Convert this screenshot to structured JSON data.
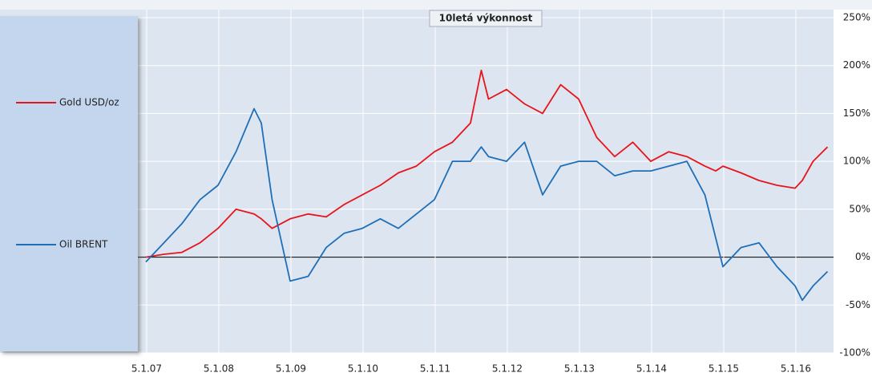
{
  "chart_data": {
    "type": "line",
    "title": "10letá výkonnost",
    "x": [
      2007,
      2007.25,
      2007.5,
      2007.75,
      2008,
      2008.25,
      2008.5,
      2008.6,
      2008.75,
      2009,
      2009.25,
      2009.5,
      2009.75,
      2010,
      2010.25,
      2010.5,
      2010.75,
      2011,
      2011.25,
      2011.5,
      2011.65,
      2011.75,
      2012,
      2012.25,
      2012.5,
      2012.75,
      2013,
      2013.25,
      2013.5,
      2013.75,
      2014,
      2014.25,
      2014.5,
      2014.75,
      2014.9,
      2015,
      2015.25,
      2015.5,
      2015.75,
      2016,
      2016.1,
      2016.25,
      2016.45
    ],
    "series": [
      {
        "name": "Gold USD/oz",
        "color": "#e8141c",
        "values": [
          0,
          3,
          5,
          15,
          30,
          50,
          45,
          40,
          30,
          40,
          45,
          42,
          55,
          65,
          75,
          88,
          95,
          110,
          120,
          140,
          195,
          165,
          175,
          160,
          150,
          180,
          165,
          125,
          105,
          120,
          100,
          110,
          105,
          95,
          90,
          95,
          88,
          80,
          75,
          72,
          80,
          100,
          115
        ]
      },
      {
        "name": "Oil BRENT",
        "color": "#1f6fb8",
        "values": [
          -5,
          15,
          35,
          60,
          75,
          110,
          155,
          140,
          60,
          -25,
          -20,
          10,
          25,
          30,
          40,
          30,
          45,
          60,
          100,
          100,
          115,
          105,
          100,
          120,
          65,
          95,
          100,
          100,
          85,
          90,
          90,
          95,
          100,
          65,
          20,
          -10,
          10,
          15,
          -10,
          -30,
          -45,
          -30,
          -15
        ]
      }
    ],
    "xlim": [
      2007,
      2016.5
    ],
    "xticks": [
      {
        "value": 2007.011,
        "label": "5.1.07"
      },
      {
        "value": 2008.011,
        "label": "5.1.08"
      },
      {
        "value": 2009.011,
        "label": "5.1.09"
      },
      {
        "value": 2010.011,
        "label": "5.1.10"
      },
      {
        "value": 2011.011,
        "label": "5.1.11"
      },
      {
        "value": 2012.011,
        "label": "5.1.12"
      },
      {
        "value": 2013.011,
        "label": "5.1.13"
      },
      {
        "value": 2014.011,
        "label": "5.1.14"
      },
      {
        "value": 2015.011,
        "label": "5.1.15"
      },
      {
        "value": 2016.011,
        "label": "5.1.16"
      }
    ],
    "ylim": [
      -100,
      250
    ],
    "yticks": [
      {
        "value": -100,
        "label": "-100%"
      },
      {
        "value": -50,
        "label": "-50%"
      },
      {
        "value": 0,
        "label": "0%"
      },
      {
        "value": 50,
        "label": "50%"
      },
      {
        "value": 100,
        "label": "100%"
      },
      {
        "value": 150,
        "label": "150%"
      },
      {
        "value": 200,
        "label": "200%"
      },
      {
        "value": 250,
        "label": "250%"
      }
    ],
    "grid": true
  }
}
